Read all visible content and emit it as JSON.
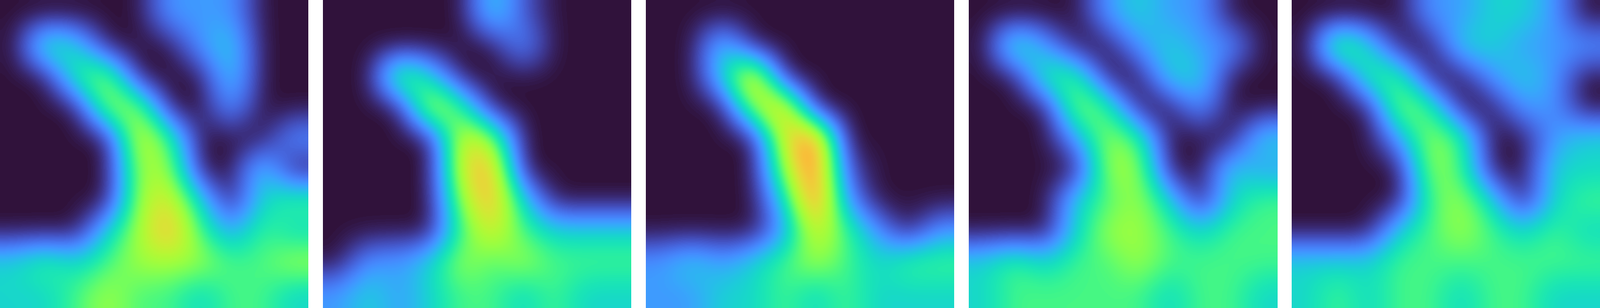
{
  "chart_data": [
    {
      "type": "heatmap",
      "color": "turbo",
      "clim": [
        0,
        1
      ],
      "tick_labels": false,
      "cells": [
        [
          0,
          0,
          0,
          0,
          0,
          0.2,
          0.2,
          0.2,
          0,
          0
        ],
        [
          0,
          0.4,
          0.3,
          0,
          0,
          0,
          0.2,
          0.3,
          0,
          0
        ],
        [
          0,
          0,
          0.4,
          0.5,
          0,
          0,
          0,
          0.3,
          0,
          0
        ],
        [
          0,
          0,
          0,
          0.5,
          0.5,
          0,
          0,
          0.2,
          0,
          0
        ],
        [
          0,
          0,
          0,
          0,
          0.6,
          0.4,
          0,
          0,
          0,
          0.2
        ],
        [
          0,
          0,
          0,
          0,
          0.5,
          0.5,
          0,
          0,
          0.3,
          0
        ],
        [
          0,
          0,
          0,
          0,
          0.5,
          0.6,
          0.3,
          0,
          0.3,
          0.4
        ],
        [
          0,
          0,
          0,
          0.3,
          0.5,
          0.7,
          0.4,
          0.2,
          0.4,
          0.3
        ],
        [
          0.3,
          0.4,
          0.3,
          0.4,
          0.5,
          0.5,
          0.5,
          0.4,
          0.4,
          0.5
        ],
        [
          0.3,
          0.3,
          0.4,
          0.5,
          0.4,
          0.4,
          0.3,
          0.4,
          0.4,
          0.3
        ]
      ]
    },
    {
      "type": "heatmap",
      "color": "turbo",
      "clim": [
        0,
        1
      ],
      "tick_labels": false,
      "cells": [
        [
          0,
          0,
          0,
          0,
          0,
          0.3,
          0.1,
          0,
          0,
          0
        ],
        [
          0,
          0,
          0,
          0,
          0,
          0,
          0.2,
          0,
          0,
          0
        ],
        [
          0,
          0,
          0.5,
          0.3,
          0,
          0,
          0,
          0,
          0,
          0
        ],
        [
          0,
          0,
          0,
          0.6,
          0.4,
          0,
          0,
          0,
          0,
          0
        ],
        [
          0,
          0,
          0,
          0,
          0.6,
          0.5,
          0,
          0,
          0,
          0
        ],
        [
          0,
          0,
          0,
          0,
          0.6,
          0.7,
          0,
          0,
          0,
          0
        ],
        [
          0,
          0,
          0,
          0,
          0.5,
          0.7,
          0.3,
          0,
          0,
          0
        ],
        [
          0,
          0,
          0,
          0,
          0.4,
          0.6,
          0.4,
          0.3,
          0.3,
          0.3
        ],
        [
          0,
          0.2,
          0.2,
          0.3,
          0.5,
          0.4,
          0.5,
          0.4,
          0.4,
          0.4
        ],
        [
          0.2,
          0.3,
          0.2,
          0.3,
          0.4,
          0.4,
          0.3,
          0.4,
          0.3,
          0.3
        ]
      ]
    },
    {
      "type": "heatmap",
      "color": "turbo",
      "clim": [
        0,
        1
      ],
      "tick_labels": false,
      "cells": [
        [
          0,
          0,
          0,
          0,
          0,
          0,
          0,
          0,
          0,
          0
        ],
        [
          0,
          0,
          0.3,
          0,
          0,
          0,
          0,
          0,
          0,
          0
        ],
        [
          0,
          0,
          0.3,
          0.7,
          0,
          0,
          0,
          0,
          0,
          0
        ],
        [
          0,
          0,
          0,
          0.5,
          0.7,
          0,
          0,
          0,
          0,
          0
        ],
        [
          0,
          0,
          0,
          0,
          0.6,
          0.8,
          0,
          0,
          0,
          0
        ],
        [
          0,
          0,
          0,
          0,
          0.5,
          0.8,
          0.1,
          0,
          0,
          0
        ],
        [
          0,
          0,
          0,
          0,
          0.3,
          0.8,
          0.2,
          0,
          0,
          0
        ],
        [
          0,
          0,
          0,
          0,
          0.2,
          0.6,
          0.4,
          0.2,
          0,
          0.2
        ],
        [
          0.2,
          0.3,
          0.2,
          0.3,
          0.4,
          0.5,
          0.4,
          0.3,
          0.4,
          0.4
        ],
        [
          0.2,
          0.2,
          0.3,
          0.3,
          0.4,
          0.3,
          0.4,
          0.3,
          0.3,
          0.3
        ]
      ]
    },
    {
      "type": "heatmap",
      "color": "turbo",
      "clim": [
        0,
        1
      ],
      "tick_labels": false,
      "cells": [
        [
          0,
          0,
          0,
          0,
          0.2,
          0.3,
          0.2,
          0.2,
          0,
          0
        ],
        [
          0,
          0.4,
          0.2,
          0,
          0,
          0.2,
          0.3,
          0.2,
          0.2,
          0
        ],
        [
          0,
          0,
          0.4,
          0.4,
          0,
          0,
          0.3,
          0.3,
          0,
          0
        ],
        [
          0,
          0,
          0,
          0.5,
          0.4,
          0,
          0,
          0.2,
          0,
          0
        ],
        [
          0,
          0,
          0,
          0.2,
          0.5,
          0.4,
          0,
          0,
          0,
          0.3
        ],
        [
          0,
          0,
          0,
          0,
          0.5,
          0.5,
          0,
          0,
          0.3,
          0.2
        ],
        [
          0,
          0,
          0,
          0.3,
          0.4,
          0.5,
          0.3,
          0,
          0.3,
          0.4
        ],
        [
          0,
          0,
          0,
          0.3,
          0.5,
          0.5,
          0.4,
          0.3,
          0.4,
          0.4
        ],
        [
          0.3,
          0.4,
          0.3,
          0.4,
          0.4,
          0.5,
          0.4,
          0.4,
          0.4,
          0.4
        ],
        [
          0.3,
          0.4,
          0.4,
          0.4,
          0.4,
          0.4,
          0.3,
          0.4,
          0.4,
          0.3
        ]
      ]
    },
    {
      "type": "heatmap",
      "color": "turbo",
      "clim": [
        0,
        1
      ],
      "tick_labels": false,
      "cells": [
        [
          0,
          0,
          0,
          0,
          0.2,
          0.2,
          0.3,
          0.3,
          0.2,
          0
        ],
        [
          0,
          0.5,
          0.3,
          0,
          0,
          0.3,
          0.3,
          0.2,
          0.2,
          0.2
        ],
        [
          0,
          0,
          0.4,
          0.4,
          0,
          0,
          0.2,
          0.3,
          0.2,
          0
        ],
        [
          0,
          0,
          0,
          0.5,
          0.4,
          0,
          0,
          0.2,
          0.2,
          0
        ],
        [
          0,
          0,
          0,
          0.2,
          0.5,
          0.4,
          0,
          0,
          0.2,
          0.3
        ],
        [
          0,
          0,
          0,
          0,
          0.5,
          0.4,
          0,
          0,
          0.3,
          0.3
        ],
        [
          0,
          0,
          0,
          0,
          0.4,
          0.5,
          0.3,
          0,
          0.3,
          0.4
        ],
        [
          0,
          0,
          0,
          0.3,
          0.4,
          0.5,
          0.4,
          0.3,
          0.4,
          0.3
        ],
        [
          0.3,
          0.3,
          0.3,
          0.4,
          0.4,
          0.4,
          0.4,
          0.4,
          0.4,
          0.4
        ],
        [
          0.3,
          0.4,
          0.3,
          0.4,
          0.4,
          0.3,
          0.4,
          0.4,
          0.3,
          0.3
        ]
      ]
    }
  ]
}
